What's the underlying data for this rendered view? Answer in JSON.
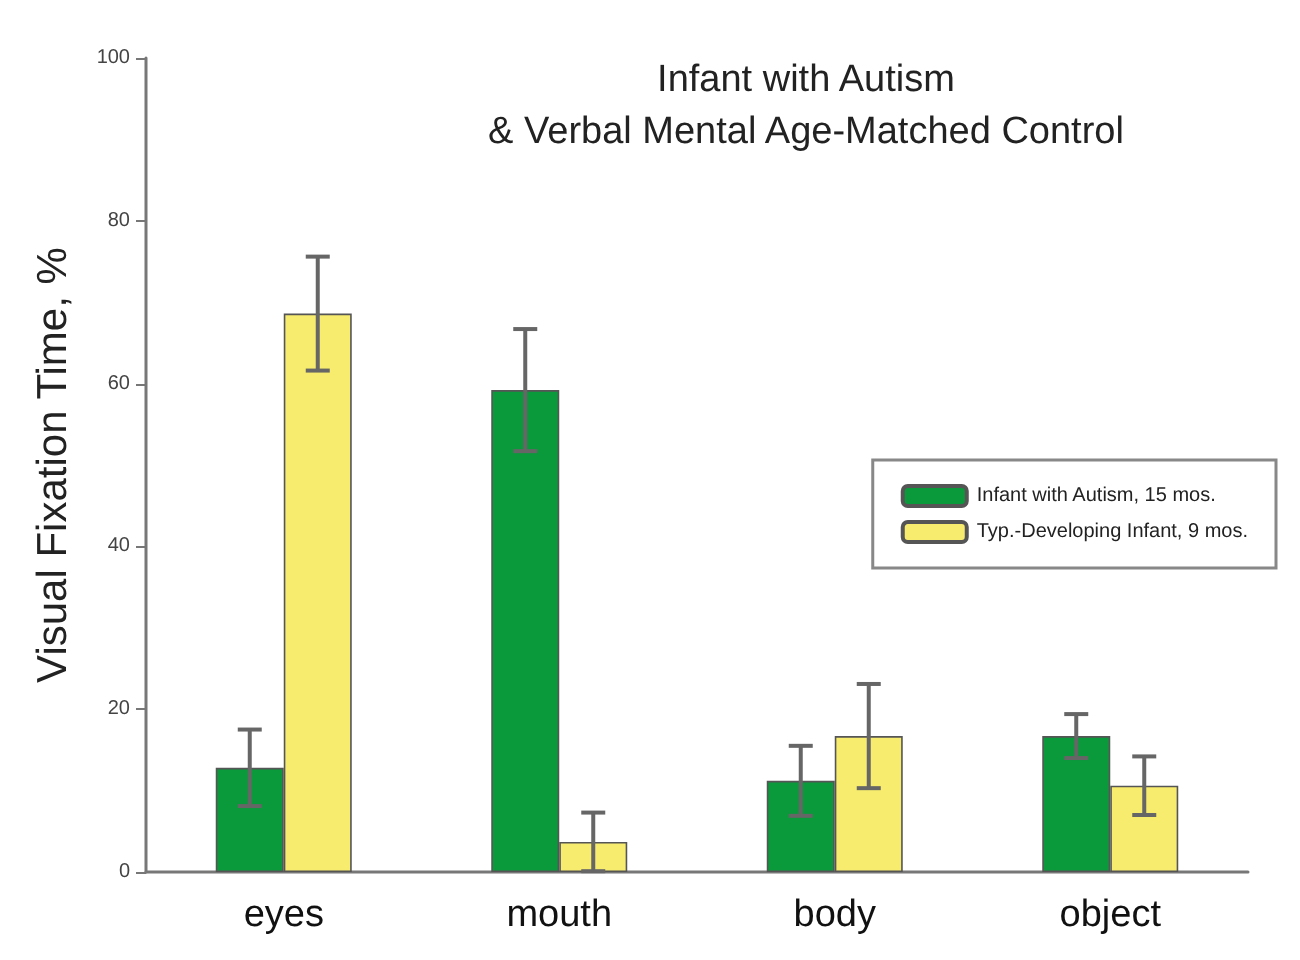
{
  "chart_data": {
    "type": "bar",
    "title": "Infant with Autism\n& Verbal Mental Age-Matched Control",
    "ylabel": "Visual Fixation Time, %",
    "categories": [
      "eyes",
      "mouth",
      "body",
      "object"
    ],
    "series": [
      {
        "name": "Infant with Autism, 15 mos.",
        "color": "#0a9a3c",
        "values": [
          12.8,
          59.2,
          11.2,
          16.7
        ],
        "errors": [
          4.7,
          7.5,
          4.3,
          2.7
        ]
      },
      {
        "name": "Typ.-Developing Infant, 9 mos.",
        "color": "#f7ec6e",
        "values": [
          68.6,
          3.7,
          16.7,
          10.6
        ],
        "errors": [
          7,
          3.6,
          6.4,
          3.6
        ]
      }
    ],
    "ylim": [
      0,
      100
    ],
    "yticks": [
      0,
      20,
      40,
      60,
      80,
      100
    ],
    "grid": false,
    "legend": "right"
  }
}
